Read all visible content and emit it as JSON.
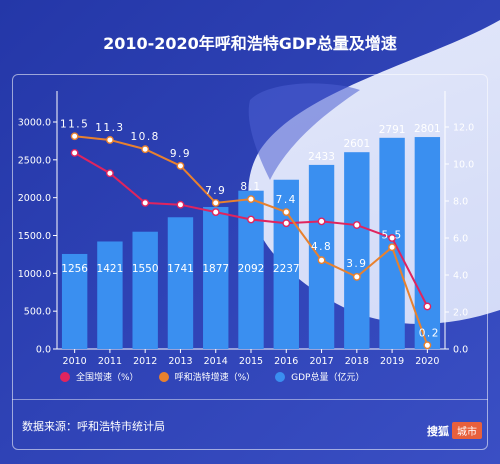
{
  "title": "2010-2020年呼和浩特GDP总量及增速",
  "source": "数据来源：呼和浩特市统计局",
  "brand": {
    "name": "搜狐",
    "tag": "城市"
  },
  "colors": {
    "bar": "#3a8ff0",
    "national": "#e0245e",
    "hohhot": "#e8812e",
    "text": "#ffffff",
    "bg_dark": "#2a3aa8",
    "bg_light": "#e6eafb"
  },
  "chart_data": {
    "type": "bar+line",
    "categories": [
      "2010",
      "2011",
      "2012",
      "2013",
      "2014",
      "2015",
      "2016",
      "2017",
      "2018",
      "2019",
      "2020"
    ],
    "series": [
      {
        "name": "GDP总量（亿元）",
        "type": "bar",
        "axis": "left",
        "values": [
          1256,
          1421,
          1550,
          1741,
          1877,
          2092,
          2237,
          2433,
          2601,
          2791,
          2801
        ],
        "labels": [
          "1256",
          "1421",
          "1550",
          "1741",
          "1877",
          "2092",
          "2237",
          "2433",
          "2601",
          "2791",
          "2801"
        ]
      },
      {
        "name": "全国增速（%）",
        "type": "line",
        "axis": "right",
        "values": [
          10.6,
          9.5,
          7.9,
          7.8,
          7.4,
          7.0,
          6.8,
          6.9,
          6.7,
          6.0,
          2.3
        ]
      },
      {
        "name": "呼和浩特增速（%）",
        "type": "line",
        "axis": "right",
        "values": [
          11.5,
          11.3,
          10.8,
          9.9,
          7.9,
          8.1,
          7.4,
          4.8,
          3.9,
          5.5,
          0.2
        ],
        "labels": [
          "11.5",
          "11.3",
          "10.8",
          "9.9",
          "7.9",
          "8.1",
          "7.4",
          "4.8",
          "3.9",
          "5.5",
          "0.2"
        ]
      }
    ],
    "y_left": {
      "min": 0,
      "max": 3000,
      "ticks": [
        "0.0",
        "500.0",
        "1000.0",
        "1500.0",
        "2000.0",
        "2500.0",
        "3000.0"
      ]
    },
    "y_right": {
      "min": 0,
      "max": 12,
      "ticks": [
        "0.0",
        "2.0",
        "4.0",
        "6.0",
        "8.0",
        "10.0",
        "12.0"
      ]
    },
    "legend": [
      {
        "label": "全国增速（%）",
        "color": "#e0245e"
      },
      {
        "label": "呼和浩特增速（%）",
        "color": "#e8812e"
      },
      {
        "label": "GDP总量（亿元）",
        "color": "#3a8ff0"
      }
    ],
    "legend_position": "bottom",
    "grid": false
  }
}
